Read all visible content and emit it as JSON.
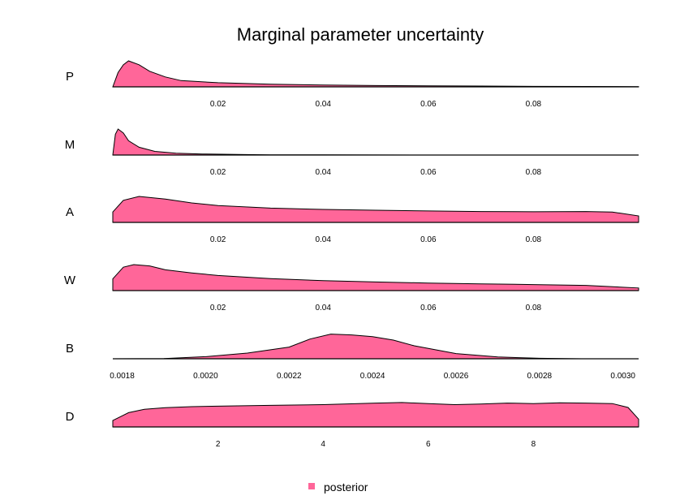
{
  "chart_data": {
    "type": "area",
    "title": "Marginal parameter uncertainty",
    "fill_color": "#FF6699",
    "line_color": "#000000",
    "legend": {
      "label": "posterior",
      "position": "bottom-center"
    },
    "panels": [
      {
        "label": "P",
        "xlim": [
          0.0,
          0.1
        ],
        "ticks": [
          0.02,
          0.04,
          0.06,
          0.08
        ],
        "tick_labels": [
          "0.02",
          "0.04",
          "0.06",
          "0.08"
        ],
        "density": {
          "x": [
            0.0,
            0.001,
            0.002,
            0.003,
            0.005,
            0.007,
            0.01,
            0.013,
            0.02,
            0.03,
            0.04,
            0.05,
            0.06,
            0.07,
            0.08,
            0.09,
            0.1
          ],
          "y": [
            0.0,
            0.55,
            0.85,
            1.0,
            0.85,
            0.6,
            0.38,
            0.24,
            0.16,
            0.1,
            0.07,
            0.05,
            0.04,
            0.03,
            0.02,
            0.015,
            0.01
          ]
        }
      },
      {
        "label": "M",
        "xlim": [
          0.0,
          0.1
        ],
        "ticks": [
          0.02,
          0.04,
          0.06,
          0.08
        ],
        "tick_labels": [
          "0.02",
          "0.04",
          "0.06",
          "0.08"
        ],
        "density": {
          "x": [
            0.0,
            0.0005,
            0.001,
            0.002,
            0.003,
            0.005,
            0.008,
            0.012,
            0.017,
            0.025,
            0.03,
            0.04,
            0.06,
            0.1
          ],
          "y": [
            0.0,
            0.8,
            1.0,
            0.85,
            0.55,
            0.3,
            0.14,
            0.07,
            0.04,
            0.02,
            0.01,
            0.005,
            0.0,
            0.0
          ]
        }
      },
      {
        "label": "A",
        "xlim": [
          0.0,
          0.1
        ],
        "ticks": [
          0.02,
          0.04,
          0.06,
          0.08
        ],
        "tick_labels": [
          "0.02",
          "0.04",
          "0.06",
          "0.08"
        ],
        "density": {
          "x": [
            0.0,
            0.002,
            0.005,
            0.01,
            0.015,
            0.02,
            0.03,
            0.04,
            0.05,
            0.06,
            0.07,
            0.08,
            0.09,
            0.095,
            0.1
          ],
          "y": [
            0.4,
            0.85,
            1.0,
            0.9,
            0.75,
            0.65,
            0.55,
            0.5,
            0.47,
            0.44,
            0.42,
            0.41,
            0.42,
            0.4,
            0.25
          ]
        }
      },
      {
        "label": "W",
        "xlim": [
          0.0,
          0.1
        ],
        "ticks": [
          0.02,
          0.04,
          0.06,
          0.08
        ],
        "tick_labels": [
          "0.02",
          "0.04",
          "0.06",
          "0.08"
        ],
        "density": {
          "x": [
            0.0,
            0.002,
            0.004,
            0.007,
            0.01,
            0.015,
            0.02,
            0.03,
            0.04,
            0.05,
            0.06,
            0.07,
            0.08,
            0.09,
            0.1
          ],
          "y": [
            0.45,
            0.9,
            1.0,
            0.95,
            0.8,
            0.68,
            0.58,
            0.46,
            0.38,
            0.33,
            0.29,
            0.26,
            0.23,
            0.2,
            0.1
          ]
        }
      },
      {
        "label": "B",
        "xlim": [
          0.0017776,
          0.0030375
        ],
        "ticks": [
          0.0018,
          0.002,
          0.0022,
          0.0024,
          0.0026,
          0.0028,
          0.003
        ],
        "tick_labels": [
          "0.0018",
          "0.0020",
          "0.0022",
          "0.0024",
          "0.0026",
          "0.0028",
          "0.0030"
        ],
        "density": {
          "x": [
            0.0017776,
            0.0019,
            0.002,
            0.0021,
            0.0022,
            0.00225,
            0.0023,
            0.00235,
            0.0024,
            0.00245,
            0.0025,
            0.0026,
            0.0027,
            0.0028,
            0.0029,
            0.0030375
          ],
          "y": [
            0.0,
            0.01,
            0.08,
            0.22,
            0.45,
            0.76,
            0.95,
            0.92,
            0.85,
            0.72,
            0.5,
            0.2,
            0.07,
            0.02,
            0.0,
            0.0
          ]
        }
      },
      {
        "label": "D",
        "xlim": [
          0.0,
          10.0
        ],
        "ticks": [
          2,
          4,
          6,
          8
        ],
        "tick_labels": [
          "2",
          "4",
          "6",
          "8"
        ],
        "density": {
          "x": [
            0.0,
            0.3,
            0.6,
            1.0,
            1.5,
            2.0,
            3.0,
            4.0,
            5.0,
            5.5,
            6.0,
            6.5,
            7.0,
            7.5,
            8.0,
            8.5,
            9.0,
            9.5,
            9.8,
            10.0
          ],
          "y": [
            0.25,
            0.55,
            0.68,
            0.74,
            0.78,
            0.8,
            0.83,
            0.86,
            0.92,
            0.94,
            0.9,
            0.86,
            0.88,
            0.92,
            0.9,
            0.93,
            0.92,
            0.9,
            0.75,
            0.3
          ]
        }
      }
    ]
  }
}
